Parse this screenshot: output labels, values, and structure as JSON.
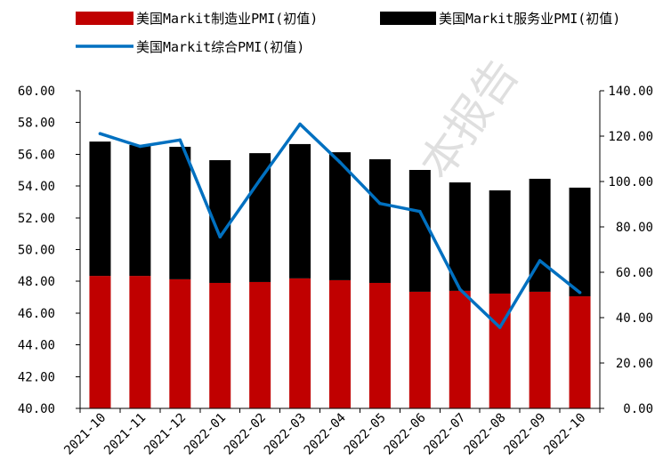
{
  "colors": {
    "manufacturing": "#C00000",
    "services": "#000000",
    "composite": "#0070C0"
  },
  "watermark": "本报告",
  "chart_data": {
    "type": "bar",
    "stacked": true,
    "legend_position": "top",
    "grid": false,
    "categories": [
      "2021-10",
      "2021-11",
      "2021-12",
      "2022-01",
      "2022-02",
      "2022-03",
      "2022-04",
      "2022-05",
      "2022-06",
      "2022-07",
      "2022-08",
      "2022-09",
      "2022-10"
    ],
    "series": [
      {
        "name": "美国Markit制造业PMI(初值)",
        "type": "bar",
        "axis": "right",
        "values": [
          58.4,
          58.4,
          56.9,
          55.3,
          55.7,
          57.3,
          56.5,
          55.3,
          51.4,
          51.8,
          50.6,
          51.4,
          49.4
        ]
      },
      {
        "name": "美国Markit服务业PMI(初值)",
        "type": "bar",
        "axis": "right",
        "values": [
          59.2,
          57.7,
          58.4,
          54.1,
          56.8,
          59.2,
          56.4,
          54.5,
          53.7,
          47.8,
          45.5,
          49.8,
          47.9
        ]
      },
      {
        "name": "美国Markit综合PMI(初值)",
        "type": "line",
        "axis": "left",
        "values": [
          57.3,
          56.5,
          56.9,
          50.8,
          54.4,
          57.9,
          55.5,
          52.9,
          52.4,
          47.5,
          45.1,
          49.3,
          47.3
        ]
      }
    ],
    "left_axis": {
      "range": [
        40,
        60
      ],
      "ticks": [
        "40.00",
        "42.00",
        "44.00",
        "46.00",
        "48.00",
        "50.00",
        "52.00",
        "54.00",
        "56.00",
        "58.00",
        "60.00"
      ]
    },
    "right_axis": {
      "range": [
        0,
        140
      ],
      "ticks": [
        "0.00",
        "20.00",
        "40.00",
        "60.00",
        "80.00",
        "100.00",
        "120.00",
        "140.00"
      ]
    }
  }
}
